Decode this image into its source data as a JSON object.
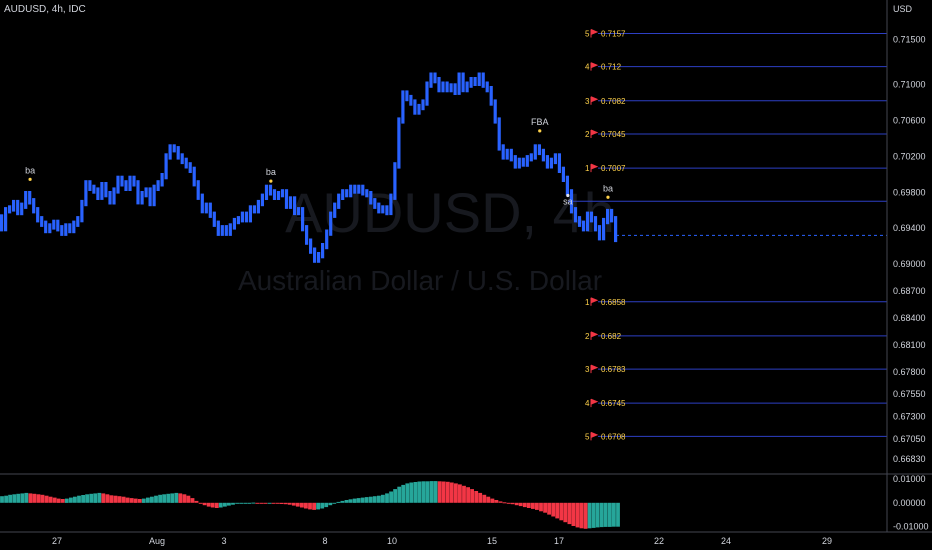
{
  "header": {
    "symbol_line": "AUDUSD, 4h, IDC",
    "currency": "USD"
  },
  "watermark": {
    "symbol": "AUDUSD, 4h",
    "description": "Australian Dollar / U.S. Dollar"
  },
  "colors": {
    "bars": "#2962ff",
    "level_line": "#2d3fc4",
    "level_text": "#ffd24a",
    "flag": "#f23645",
    "osc_up": "#26a69a",
    "osc_down": "#f23645",
    "axis_text": "#d1d4dc"
  },
  "chart_data": [
    {
      "type": "bar",
      "subtype": "ohlc-range-bars",
      "symbol": "AUDUSD",
      "timeframe": "4h",
      "x_labels": [
        "27",
        "Aug",
        "3",
        "8",
        "10",
        "15",
        "17",
        "22",
        "24",
        "29"
      ],
      "y_ticks": [
        "0.71500",
        "0.71000",
        "0.70600",
        "0.70200",
        "0.69800",
        "0.69400",
        "0.69000",
        "0.68700",
        "0.68400",
        "0.68100",
        "0.67800",
        "0.67550",
        "0.67300",
        "0.67050",
        "0.66830"
      ],
      "ylim": [
        0.6675,
        0.7172
      ],
      "current_price": 0.6932,
      "levels": [
        {
          "num": "5",
          "label": "0.7157",
          "value": 0.7157
        },
        {
          "num": "4",
          "label": "0.712",
          "value": 0.712
        },
        {
          "num": "3",
          "label": "0.7082",
          "value": 0.7082
        },
        {
          "num": "2",
          "label": "0.7045",
          "value": 0.7045
        },
        {
          "num": "1",
          "label": "0.7007",
          "value": 0.7007
        },
        {
          "num": "1",
          "label": "0.6858",
          "value": 0.6858
        },
        {
          "num": "2",
          "label": "0.682",
          "value": 0.682
        },
        {
          "num": "3",
          "label": "0.6783",
          "value": 0.6783
        },
        {
          "num": "4",
          "label": "0.6745",
          "value": 0.6745
        },
        {
          "num": "5",
          "label": "0.6708",
          "value": 0.6708
        }
      ],
      "base_level": 0.697,
      "annotations": [
        {
          "text": "ba",
          "bar": 7,
          "price": 0.699,
          "pos": "above"
        },
        {
          "text": "ba",
          "bar": 67,
          "price": 0.6988,
          "pos": "above"
        },
        {
          "text": "FBA",
          "bar": 134,
          "price": 0.7044,
          "pos": "above"
        },
        {
          "text": "sa",
          "bar": 141,
          "price": 0.6982,
          "pos": "below"
        },
        {
          "text": "ba",
          "bar": 151,
          "price": 0.697,
          "pos": "above"
        }
      ],
      "series": [
        {
          "name": "",
          "values": [
            0.694,
            0.696,
            0.6962,
            0.6968,
            0.6958,
            0.6965,
            0.6978,
            0.697,
            0.696,
            0.695,
            0.6945,
            0.6938,
            0.6942,
            0.6946,
            0.694,
            0.6935,
            0.6942,
            0.6938,
            0.6945,
            0.695,
            0.6968,
            0.699,
            0.6985,
            0.6982,
            0.6975,
            0.6988,
            0.6978,
            0.697,
            0.6982,
            0.6995,
            0.699,
            0.6985,
            0.6995,
            0.699,
            0.697,
            0.6978,
            0.6982,
            0.6968,
            0.6985,
            0.699,
            0.6998,
            0.702,
            0.703,
            0.7028,
            0.702,
            0.7015,
            0.701,
            0.7005,
            0.699,
            0.6975,
            0.696,
            0.6965,
            0.6955,
            0.6945,
            0.6935,
            0.694,
            0.6935,
            0.6942,
            0.6948,
            0.695,
            0.6955,
            0.695,
            0.6962,
            0.696,
            0.6968,
            0.6975,
            0.6985,
            0.698,
            0.6975,
            0.6978,
            0.698,
            0.6965,
            0.6972,
            0.6958,
            0.696,
            0.694,
            0.6925,
            0.6915,
            0.6905,
            0.691,
            0.692,
            0.6935,
            0.6955,
            0.6965,
            0.6975,
            0.698,
            0.6978,
            0.6985,
            0.6982,
            0.6985,
            0.698,
            0.6978,
            0.697,
            0.6965,
            0.696,
            0.6962,
            0.6958,
            0.6975,
            0.701,
            0.706,
            0.709,
            0.7085,
            0.708,
            0.707,
            0.7075,
            0.708,
            0.71,
            0.711,
            0.7105,
            0.7095,
            0.71,
            0.7095,
            0.7098,
            0.7092,
            0.711,
            0.7095,
            0.71,
            0.7105,
            0.7102,
            0.711,
            0.71,
            0.7095,
            0.708,
            0.706,
            0.703,
            0.702,
            0.7025,
            0.7018,
            0.701,
            0.7015,
            0.7012,
            0.7018,
            0.702,
            0.703,
            0.7025,
            0.7018,
            0.701,
            0.7015,
            0.702,
            0.7005,
            0.6995,
            0.698,
            0.696,
            0.695,
            0.6945,
            0.694,
            0.6955,
            0.695,
            0.694,
            0.693,
            0.6948,
            0.6958,
            0.695,
            0.6928
          ]
        },
        {
          "name": "",
          "values": [
            0.0028,
            0.003,
            0.0034,
            0.0036,
            0.0038,
            0.004,
            0.0042,
            0.004,
            0.0038,
            0.0036,
            0.0034,
            0.003,
            0.0026,
            0.0022,
            0.0018,
            0.0016,
            0.0018,
            0.0022,
            0.0026,
            0.003,
            0.0033,
            0.0036,
            0.0038,
            0.004,
            0.0042,
            0.004,
            0.0036,
            0.0032,
            0.003,
            0.0028,
            0.0026,
            0.0022,
            0.002,
            0.0018,
            0.0016,
            0.0018,
            0.0022,
            0.0026,
            0.003,
            0.0034,
            0.0036,
            0.0038,
            0.004,
            0.0042,
            0.004,
            0.0036,
            0.003,
            0.002,
            0.0008,
            -0.0002,
            -0.001,
            -0.0016,
            -0.002,
            -0.0022,
            -0.002,
            -0.0016,
            -0.0012,
            -0.0008,
            -0.0004,
            -0.0002,
            -0.0001,
            0.0,
            0.0001,
            0.0,
            -0.0001,
            -0.0002,
            -0.0002,
            -0.0003,
            -0.0004,
            -0.0005,
            -0.0006,
            -0.0008,
            -0.0012,
            -0.0016,
            -0.002,
            -0.0024,
            -0.0028,
            -0.003,
            -0.0028,
            -0.0024,
            -0.0018,
            -0.001,
            -0.0002,
            0.0004,
            0.0008,
            0.0012,
            0.0015,
            0.0018,
            0.002,
            0.0022,
            0.0024,
            0.0026,
            0.0028,
            0.003,
            0.0034,
            0.004,
            0.0048,
            0.0058,
            0.0068,
            0.0076,
            0.0082,
            0.0086,
            0.0088,
            0.009,
            0.0091,
            0.0091,
            0.0092,
            0.0092,
            0.0091,
            0.009,
            0.0089,
            0.0086,
            0.0082,
            0.0078,
            0.0072,
            0.0066,
            0.0058,
            0.005,
            0.0042,
            0.0034,
            0.0026,
            0.0018,
            0.0012,
            0.0006,
            0.0002,
            -0.0002,
            -0.0006,
            -0.001,
            -0.0014,
            -0.0018,
            -0.0022,
            -0.0026,
            -0.003,
            -0.0036,
            -0.0042,
            -0.005,
            -0.0058,
            -0.0066,
            -0.0074,
            -0.0082,
            -0.009,
            -0.0098,
            -0.0104,
            -0.0108,
            -0.011,
            -0.0108,
            -0.0106,
            -0.0104,
            -0.0103,
            -0.0102,
            -0.0102,
            -0.0101,
            -0.0101
          ]
        }
      ],
      "osc_y_ticks": [
        "0.01000",
        "0.00000",
        "-0.01000"
      ],
      "osc_ylim": [
        -0.0115,
        0.0105
      ]
    }
  ]
}
